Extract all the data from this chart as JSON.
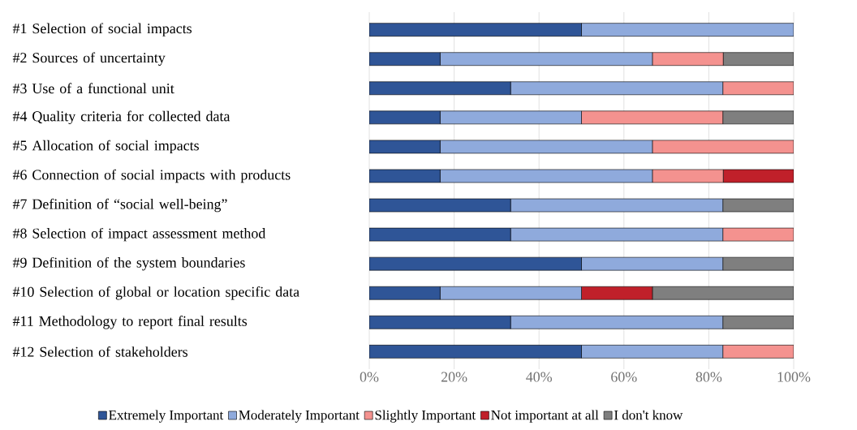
{
  "chart_data": {
    "type": "bar",
    "orientation": "horizontal",
    "stacked": true,
    "categories": [
      "#1 Selection of social impacts",
      "#2 Sources of uncertainty",
      "#3 Use of a functional unit",
      "#4 Quality criteria for collected data",
      "#5 Allocation of social impacts",
      "#6 Connection of social impacts with products",
      "#7 Definition of “social well-being”",
      "#8 Selection of impact assessment method",
      "#9 Definition of the system boundaries",
      "#10 Selection of global or location specific data",
      "#11 Methodology to report final results",
      "#12 Selection of stakeholders"
    ],
    "series": [
      {
        "name": "Extremely Important",
        "color": "#2f5597",
        "values": [
          50,
          16.7,
          33.3,
          16.7,
          16.7,
          16.7,
          33.3,
          33.3,
          50,
          16.7,
          33.3,
          50
        ]
      },
      {
        "name": "Moderately Important",
        "color": "#8faadc",
        "values": [
          50,
          50,
          50,
          33.3,
          50,
          50,
          50,
          50,
          33.3,
          33.3,
          50,
          33.3
        ]
      },
      {
        "name": "Slightly Important",
        "color": "#f4928f",
        "values": [
          0,
          16.7,
          16.7,
          33.3,
          33.3,
          16.7,
          0,
          16.7,
          0,
          0,
          0,
          16.7
        ]
      },
      {
        "name": "Not important at all",
        "color": "#c0202a",
        "values": [
          0,
          0,
          0,
          0,
          0,
          16.6,
          0,
          0,
          0,
          16.7,
          0,
          0
        ]
      },
      {
        "name": "I don't know",
        "color": "#7f7f7f",
        "values": [
          0,
          16.6,
          0,
          16.7,
          0,
          0,
          16.7,
          0,
          16.7,
          33.3,
          16.7,
          0
        ]
      }
    ],
    "xlim": [
      0,
      100
    ],
    "xticks": [
      {
        "value": 0,
        "label": "0%"
      },
      {
        "value": 20,
        "label": "20%"
      },
      {
        "value": 40,
        "label": "40%"
      },
      {
        "value": 60,
        "label": "60%"
      },
      {
        "value": 80,
        "label": "80%"
      },
      {
        "value": 100,
        "label": "100%"
      }
    ],
    "grid": "x",
    "legend": "bottom"
  }
}
